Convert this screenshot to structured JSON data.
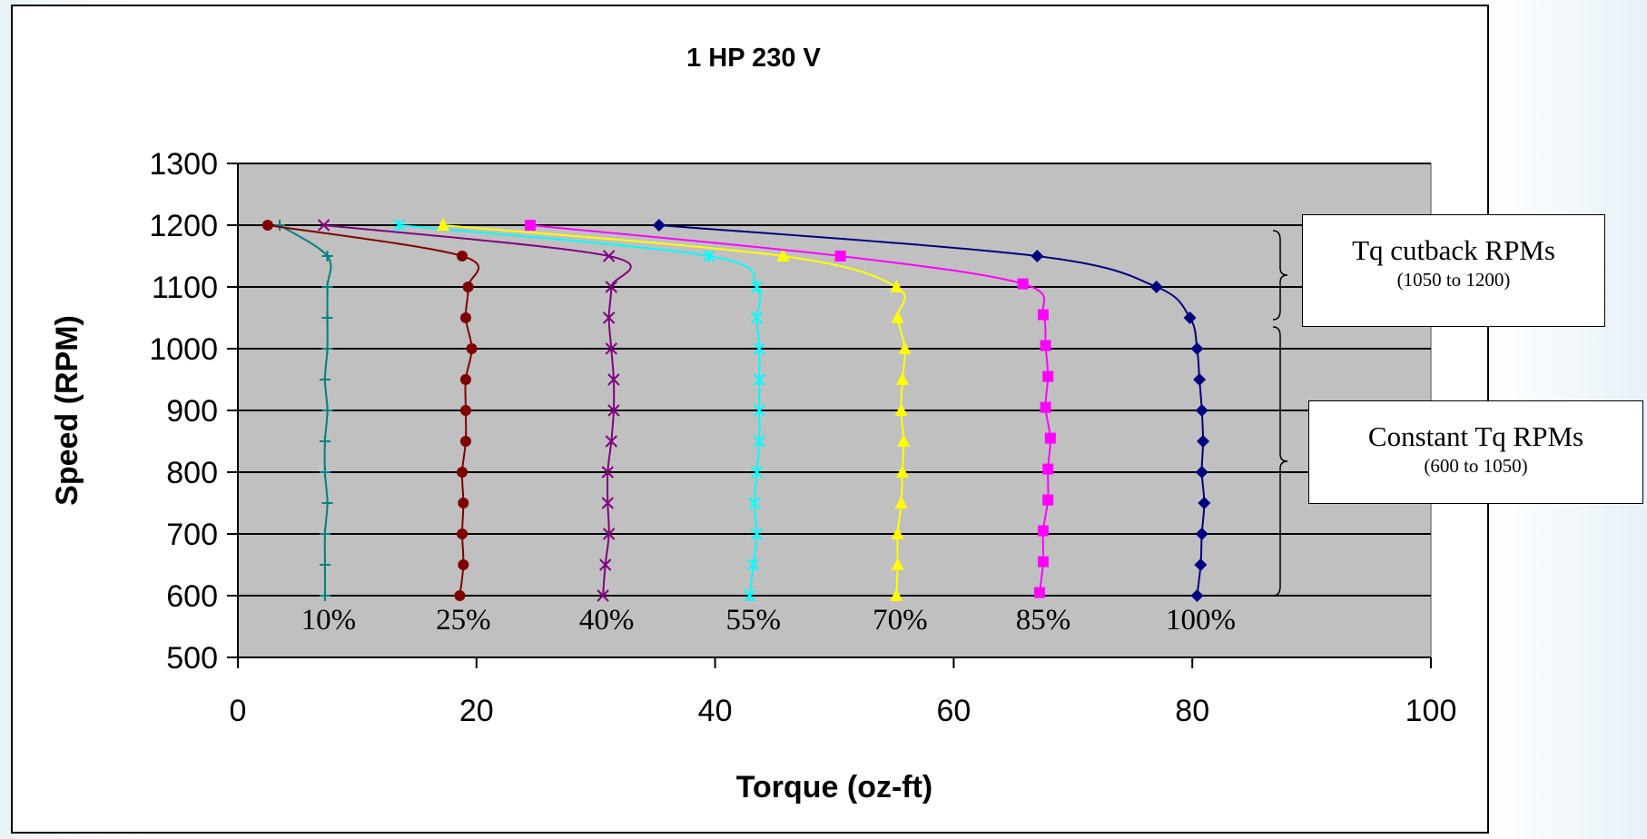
{
  "chart_data": {
    "type": "line",
    "title": "1 HP 230 V",
    "xlabel": "Torque (oz-ft)",
    "ylabel": "Speed (RPM)",
    "xlim": [
      0,
      100
    ],
    "ylim": [
      500,
      1300
    ],
    "xticks": [
      0,
      20,
      40,
      60,
      80,
      100
    ],
    "yticks": [
      500,
      600,
      700,
      800,
      900,
      1000,
      1100,
      1200,
      1300
    ],
    "grid": "horizontal",
    "plot_background": "#c0c0c0",
    "series": [
      {
        "name": "10%",
        "color": "#008080",
        "marker": "plus",
        "points": [
          [
            3.5,
            1200
          ],
          [
            7.5,
            1150
          ],
          [
            7.5,
            1100
          ],
          [
            7.5,
            1050
          ],
          [
            7.5,
            1000
          ],
          [
            7.3,
            950
          ],
          [
            7.5,
            900
          ],
          [
            7.3,
            850
          ],
          [
            7.3,
            800
          ],
          [
            7.5,
            750
          ],
          [
            7.3,
            700
          ],
          [
            7.3,
            650
          ],
          [
            7.3,
            600
          ]
        ]
      },
      {
        "name": "25%",
        "color": "#800000",
        "marker": "circle",
        "points": [
          [
            2.5,
            1200
          ],
          [
            18.8,
            1150
          ],
          [
            19.3,
            1100
          ],
          [
            19.1,
            1050
          ],
          [
            19.6,
            1000
          ],
          [
            19.1,
            950
          ],
          [
            19.1,
            900
          ],
          [
            19.1,
            850
          ],
          [
            18.8,
            800
          ],
          [
            18.9,
            750
          ],
          [
            18.8,
            700
          ],
          [
            18.9,
            650
          ],
          [
            18.6,
            600
          ]
        ]
      },
      {
        "name": "40%",
        "color": "#800080",
        "marker": "x",
        "points": [
          [
            7.2,
            1200
          ],
          [
            31.1,
            1150
          ],
          [
            31.3,
            1100
          ],
          [
            31.1,
            1050
          ],
          [
            31.3,
            1000
          ],
          [
            31.5,
            950
          ],
          [
            31.5,
            900
          ],
          [
            31.3,
            850
          ],
          [
            31.0,
            800
          ],
          [
            31.0,
            750
          ],
          [
            31.1,
            700
          ],
          [
            30.8,
            650
          ],
          [
            30.6,
            600
          ]
        ]
      },
      {
        "name": "55%",
        "color": "#00ffff",
        "marker": "asterisk",
        "points": [
          [
            13.5,
            1200
          ],
          [
            39.5,
            1150
          ],
          [
            43.5,
            1100
          ],
          [
            43.5,
            1050
          ],
          [
            43.7,
            1000
          ],
          [
            43.7,
            950
          ],
          [
            43.7,
            900
          ],
          [
            43.7,
            850
          ],
          [
            43.5,
            800
          ],
          [
            43.3,
            750
          ],
          [
            43.5,
            700
          ],
          [
            43.2,
            650
          ],
          [
            42.9,
            600
          ]
        ]
      },
      {
        "name": "70%",
        "color": "#ffff00",
        "marker": "triangle",
        "points": [
          [
            17.2,
            1200
          ],
          [
            45.7,
            1150
          ],
          [
            55.2,
            1100
          ],
          [
            55.3,
            1050
          ],
          [
            55.9,
            1000
          ],
          [
            55.7,
            950
          ],
          [
            55.6,
            900
          ],
          [
            55.8,
            850
          ],
          [
            55.7,
            800
          ],
          [
            55.6,
            750
          ],
          [
            55.3,
            700
          ],
          [
            55.3,
            650
          ],
          [
            55.2,
            600
          ]
        ]
      },
      {
        "name": "85%",
        "color": "#ff00ff",
        "marker": "square",
        "points": [
          [
            24.5,
            1200
          ],
          [
            50.5,
            1150
          ],
          [
            65.8,
            1105
          ],
          [
            67.5,
            1055
          ],
          [
            67.7,
            1005
          ],
          [
            67.9,
            955
          ],
          [
            67.7,
            905
          ],
          [
            68.1,
            855
          ],
          [
            67.9,
            805
          ],
          [
            67.9,
            755
          ],
          [
            67.5,
            705
          ],
          [
            67.5,
            655
          ],
          [
            67.2,
            605
          ]
        ]
      },
      {
        "name": "100%",
        "color": "#000080",
        "marker": "diamond",
        "points": [
          [
            35.3,
            1200
          ],
          [
            67.0,
            1150
          ],
          [
            77.0,
            1100
          ],
          [
            79.8,
            1050
          ],
          [
            80.4,
            1000
          ],
          [
            80.6,
            950
          ],
          [
            80.8,
            900
          ],
          [
            80.9,
            850
          ],
          [
            80.8,
            800
          ],
          [
            81.0,
            750
          ],
          [
            80.8,
            700
          ],
          [
            80.7,
            650
          ],
          [
            80.4,
            600
          ]
        ]
      }
    ],
    "annotations": {
      "brace_cutback": {
        "y_from": 1050,
        "y_to": 1200
      },
      "brace_constant": {
        "y_from": 600,
        "y_to": 1050
      }
    }
  },
  "callouts": {
    "cutback": {
      "title": "Tq cutback RPMs",
      "range": "(1050 to 1200)"
    },
    "constant": {
      "title": "Constant Tq  RPMs",
      "range": "(600 to 1050)"
    }
  }
}
